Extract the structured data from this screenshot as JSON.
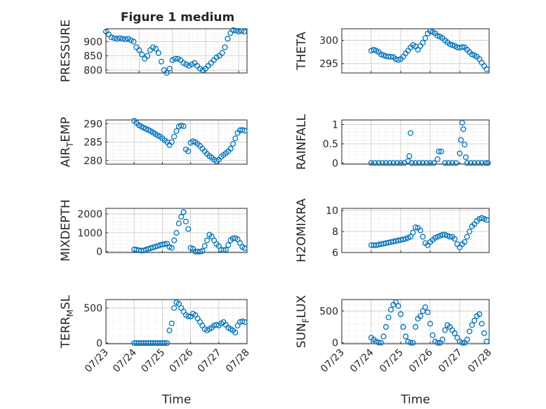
{
  "figure_title": "Figure 1 medium",
  "colors": {
    "marker": "#0072BD",
    "axis": "#262626",
    "grid": "#DCDCDC",
    "background": "#FFFFFF"
  },
  "chart_data": [
    {
      "type": "scatter",
      "ylabel": "PRESSURE",
      "title": "Figure 1 medium",
      "xlabel": "",
      "xlim": [
        "2009-07-24T00:00",
        "2009-07-28T06:00"
      ],
      "ylim": [
        790,
        945
      ],
      "yticks": [
        800,
        850,
        900
      ],
      "x": [
        "2009-07-24T00:00",
        "2009-07-24T02:00",
        "2009-07-24T04:00",
        "2009-07-24T06:00",
        "2009-07-24T08:00",
        "2009-07-24T10:00",
        "2009-07-24T12:00",
        "2009-07-24T14:00",
        "2009-07-24T16:00",
        "2009-07-24T18:00",
        "2009-07-24T20:00",
        "2009-07-24T22:00",
        "2009-07-25T00:00",
        "2009-07-25T02:00",
        "2009-07-25T04:00",
        "2009-07-25T06:00",
        "2009-07-25T08:00",
        "2009-07-25T10:00",
        "2009-07-25T12:00",
        "2009-07-25T14:00",
        "2009-07-25T16:00",
        "2009-07-25T18:00",
        "2009-07-25T20:00",
        "2009-07-25T22:00",
        "2009-07-26T00:00",
        "2009-07-26T02:00",
        "2009-07-26T04:00",
        "2009-07-26T06:00",
        "2009-07-26T08:00",
        "2009-07-26T10:00",
        "2009-07-26T12:00",
        "2009-07-26T14:00",
        "2009-07-26T16:00",
        "2009-07-26T18:00",
        "2009-07-26T20:00",
        "2009-07-26T22:00",
        "2009-07-27T00:00",
        "2009-07-27T02:00",
        "2009-07-27T04:00",
        "2009-07-27T06:00",
        "2009-07-27T08:00",
        "2009-07-27T10:00",
        "2009-07-27T12:00",
        "2009-07-27T14:00",
        "2009-07-27T16:00",
        "2009-07-27T18:00",
        "2009-07-27T20:00",
        "2009-07-27T22:00",
        "2009-07-28T00:00",
        "2009-07-28T02:00",
        "2009-07-28T04:00"
      ],
      "y": [
        935,
        925,
        915,
        912,
        910,
        912,
        910,
        908,
        910,
        905,
        900,
        880,
        870,
        855,
        840,
        850,
        870,
        880,
        875,
        860,
        830,
        800,
        790,
        805,
        835,
        840,
        840,
        835,
        825,
        820,
        815,
        820,
        825,
        815,
        805,
        800,
        805,
        815,
        825,
        835,
        845,
        850,
        860,
        880,
        910,
        930,
        940,
        938,
        935,
        937,
        935
      ]
    },
    {
      "type": "scatter",
      "ylabel": "THETA",
      "xlabel": "",
      "xlim": [
        "2009-07-23T00:00",
        "2009-07-28T00:00"
      ],
      "ylim": [
        293,
        302.5
      ],
      "yticks": [
        295,
        300
      ],
      "x": [
        "2009-07-24T00:00",
        "2009-07-24T02:00",
        "2009-07-24T04:00",
        "2009-07-24T06:00",
        "2009-07-24T08:00",
        "2009-07-24T10:00",
        "2009-07-24T12:00",
        "2009-07-24T14:00",
        "2009-07-24T16:00",
        "2009-07-24T18:00",
        "2009-07-24T20:00",
        "2009-07-24T22:00",
        "2009-07-25T00:00",
        "2009-07-25T02:00",
        "2009-07-25T04:00",
        "2009-07-25T06:00",
        "2009-07-25T08:00",
        "2009-07-25T10:00",
        "2009-07-25T12:00",
        "2009-07-25T14:00",
        "2009-07-25T16:00",
        "2009-07-25T18:00",
        "2009-07-25T20:00",
        "2009-07-25T22:00",
        "2009-07-26T00:00",
        "2009-07-26T02:00",
        "2009-07-26T04:00",
        "2009-07-26T06:00",
        "2009-07-26T08:00",
        "2009-07-26T10:00",
        "2009-07-26T12:00",
        "2009-07-26T14:00",
        "2009-07-26T16:00",
        "2009-07-26T18:00",
        "2009-07-26T20:00",
        "2009-07-26T22:00",
        "2009-07-27T00:00",
        "2009-07-27T02:00",
        "2009-07-27T04:00",
        "2009-07-27T06:00",
        "2009-07-27T08:00",
        "2009-07-27T10:00",
        "2009-07-27T12:00",
        "2009-07-27T14:00",
        "2009-07-27T16:00",
        "2009-07-27T18:00",
        "2009-07-27T20:00",
        "2009-07-27T22:00"
      ],
      "y": [
        297.8,
        298.0,
        297.8,
        297.5,
        297.0,
        296.8,
        296.6,
        296.5,
        296.5,
        296.4,
        296.0,
        295.8,
        296.0,
        296.5,
        297.2,
        297.8,
        298.5,
        299.0,
        298.7,
        298.0,
        298.8,
        299.5,
        300.5,
        301.5,
        302.0,
        301.8,
        301.5,
        301.0,
        300.8,
        300.5,
        300.0,
        299.6,
        299.2,
        299.0,
        298.8,
        298.5,
        298.4,
        298.6,
        298.5,
        298.0,
        297.5,
        297.0,
        296.8,
        296.5,
        296.0,
        295.2,
        294.5,
        293.8
      ]
    },
    {
      "type": "scatter",
      "ylabel": "AIR_TEMP",
      "ylabel_display": [
        "AIR",
        "T",
        "EMP"
      ],
      "xlabel": "",
      "xlim": [
        "2009-07-23T00:00",
        "2009-07-28T00:00"
      ],
      "ylim": [
        279,
        291
      ],
      "yticks": [
        280,
        285,
        290
      ],
      "x": [
        "2009-07-24T00:00",
        "2009-07-24T02:00",
        "2009-07-24T04:00",
        "2009-07-24T06:00",
        "2009-07-24T08:00",
        "2009-07-24T10:00",
        "2009-07-24T12:00",
        "2009-07-24T14:00",
        "2009-07-24T16:00",
        "2009-07-24T18:00",
        "2009-07-24T20:00",
        "2009-07-24T22:00",
        "2009-07-25T00:00",
        "2009-07-25T02:00",
        "2009-07-25T04:00",
        "2009-07-25T06:00",
        "2009-07-25T08:00",
        "2009-07-25T10:00",
        "2009-07-25T12:00",
        "2009-07-25T14:00",
        "2009-07-25T16:00",
        "2009-07-25T18:00",
        "2009-07-25T20:00",
        "2009-07-25T22:00",
        "2009-07-26T00:00",
        "2009-07-26T02:00",
        "2009-07-26T04:00",
        "2009-07-26T06:00",
        "2009-07-26T08:00",
        "2009-07-26T10:00",
        "2009-07-26T12:00",
        "2009-07-26T14:00",
        "2009-07-26T16:00",
        "2009-07-26T18:00",
        "2009-07-26T20:00",
        "2009-07-26T22:00",
        "2009-07-27T00:00",
        "2009-07-27T02:00",
        "2009-07-27T04:00",
        "2009-07-27T06:00",
        "2009-07-27T08:00",
        "2009-07-27T10:00",
        "2009-07-27T12:00",
        "2009-07-27T14:00",
        "2009-07-27T16:00",
        "2009-07-27T18:00",
        "2009-07-27T20:00",
        "2009-07-27T22:00"
      ],
      "y": [
        290.8,
        290.2,
        289.6,
        289.2,
        288.9,
        288.6,
        288.3,
        288.0,
        287.6,
        287.2,
        286.8,
        286.5,
        286.0,
        285.5,
        285.0,
        284.2,
        285.0,
        286.5,
        288.0,
        289.2,
        289.5,
        289.3,
        283.0,
        282.5,
        284.8,
        285.2,
        285.0,
        284.5,
        284.0,
        283.2,
        282.5,
        281.8,
        281.2,
        280.8,
        280.2,
        279.8,
        280.2,
        281.0,
        281.5,
        282.0,
        282.5,
        283.2,
        284.5,
        286.0,
        287.5,
        288.2,
        288.3,
        288.1
      ]
    },
    {
      "type": "scatter",
      "ylabel": "RAINFALL",
      "xlabel": "",
      "xlim": [
        "2009-07-23T00:00",
        "2009-07-28T00:00"
      ],
      "ylim": [
        -0.03,
        1.12
      ],
      "yticks": [
        0,
        0.5,
        1
      ],
      "x": [
        "2009-07-24T00:00",
        "2009-07-24T03:00",
        "2009-07-24T06:00",
        "2009-07-24T09:00",
        "2009-07-24T12:00",
        "2009-07-24T15:00",
        "2009-07-24T18:00",
        "2009-07-24T21:00",
        "2009-07-25T00:00",
        "2009-07-25T03:00",
        "2009-07-25T06:00",
        "2009-07-25T07:00",
        "2009-07-25T08:00",
        "2009-07-25T09:00",
        "2009-07-25T12:00",
        "2009-07-25T15:00",
        "2009-07-25T18:00",
        "2009-07-25T21:00",
        "2009-07-26T00:00",
        "2009-07-26T03:00",
        "2009-07-26T06:00",
        "2009-07-26T07:00",
        "2009-07-26T09:00",
        "2009-07-26T12:00",
        "2009-07-26T15:00",
        "2009-07-26T18:00",
        "2009-07-26T21:00",
        "2009-07-27T00:00",
        "2009-07-27T01:00",
        "2009-07-27T02:00",
        "2009-07-27T03:00",
        "2009-07-27T04:00",
        "2009-07-27T05:00",
        "2009-07-27T06:00",
        "2009-07-27T09:00",
        "2009-07-27T12:00",
        "2009-07-27T15:00",
        "2009-07-27T18:00",
        "2009-07-27T21:00",
        "2009-07-27T23:00"
      ],
      "y": [
        0,
        0,
        0,
        0,
        0,
        0,
        0,
        0,
        0,
        0,
        0.05,
        0.18,
        0.78,
        0,
        0,
        0,
        0,
        0,
        0,
        0,
        0.1,
        0.3,
        0.3,
        0,
        0,
        0,
        0,
        0.25,
        0.6,
        1.05,
        0.88,
        0.48,
        0.15,
        0,
        0,
        0,
        0,
        0,
        0,
        0
      ]
    },
    {
      "type": "scatter",
      "ylabel": "MIXDEPTH",
      "xlabel": "",
      "xlim": [
        "2009-07-23T00:00",
        "2009-07-28T00:00"
      ],
      "ylim": [
        -50,
        2300
      ],
      "yticks": [
        0,
        1000,
        2000
      ],
      "x": [
        "2009-07-24T00:00",
        "2009-07-24T02:00",
        "2009-07-24T04:00",
        "2009-07-24T06:00",
        "2009-07-24T08:00",
        "2009-07-24T10:00",
        "2009-07-24T12:00",
        "2009-07-24T14:00",
        "2009-07-24T16:00",
        "2009-07-24T18:00",
        "2009-07-24T20:00",
        "2009-07-24T22:00",
        "2009-07-25T00:00",
        "2009-07-25T02:00",
        "2009-07-25T04:00",
        "2009-07-25T06:00",
        "2009-07-25T08:00",
        "2009-07-25T10:00",
        "2009-07-25T12:00",
        "2009-07-25T14:00",
        "2009-07-25T16:00",
        "2009-07-25T18:00",
        "2009-07-25T20:00",
        "2009-07-25T22:00",
        "2009-07-26T00:00",
        "2009-07-26T02:00",
        "2009-07-26T04:00",
        "2009-07-26T06:00",
        "2009-07-26T08:00",
        "2009-07-26T10:00",
        "2009-07-26T12:00",
        "2009-07-26T14:00",
        "2009-07-26T16:00",
        "2009-07-26T18:00",
        "2009-07-26T20:00",
        "2009-07-26T22:00",
        "2009-07-27T00:00",
        "2009-07-27T02:00",
        "2009-07-27T04:00",
        "2009-07-27T06:00",
        "2009-07-27T08:00",
        "2009-07-27T10:00",
        "2009-07-27T12:00",
        "2009-07-27T14:00",
        "2009-07-27T16:00",
        "2009-07-27T18:00",
        "2009-07-27T20:00",
        "2009-07-27T22:00"
      ],
      "y": [
        120,
        100,
        70,
        50,
        60,
        100,
        150,
        180,
        220,
        260,
        300,
        350,
        380,
        400,
        420,
        250,
        200,
        600,
        1000,
        1500,
        1850,
        2100,
        1600,
        1200,
        200,
        150,
        0,
        0,
        0,
        30,
        300,
        600,
        900,
        800,
        600,
        400,
        300,
        100,
        80,
        100,
        350,
        600,
        700,
        720,
        650,
        450,
        250,
        180
      ]
    },
    {
      "type": "scatter",
      "ylabel": "H2OMIXRA",
      "xlabel": "",
      "xlim": [
        "2009-07-23T00:00",
        "2009-07-28T00:00"
      ],
      "ylim": [
        6,
        10.2
      ],
      "yticks": [
        6,
        8,
        10
      ],
      "x": [
        "2009-07-24T00:00",
        "2009-07-24T02:00",
        "2009-07-24T04:00",
        "2009-07-24T06:00",
        "2009-07-24T08:00",
        "2009-07-24T10:00",
        "2009-07-24T12:00",
        "2009-07-24T14:00",
        "2009-07-24T16:00",
        "2009-07-24T18:00",
        "2009-07-24T20:00",
        "2009-07-24T22:00",
        "2009-07-25T00:00",
        "2009-07-25T02:00",
        "2009-07-25T04:00",
        "2009-07-25T06:00",
        "2009-07-25T08:00",
        "2009-07-25T10:00",
        "2009-07-25T12:00",
        "2009-07-25T14:00",
        "2009-07-25T16:00",
        "2009-07-25T18:00",
        "2009-07-25T20:00",
        "2009-07-25T22:00",
        "2009-07-26T00:00",
        "2009-07-26T02:00",
        "2009-07-26T04:00",
        "2009-07-26T06:00",
        "2009-07-26T08:00",
        "2009-07-26T10:00",
        "2009-07-26T12:00",
        "2009-07-26T14:00",
        "2009-07-26T16:00",
        "2009-07-26T18:00",
        "2009-07-26T20:00",
        "2009-07-26T22:00",
        "2009-07-27T00:00",
        "2009-07-27T02:00",
        "2009-07-27T04:00",
        "2009-07-27T06:00",
        "2009-07-27T08:00",
        "2009-07-27T10:00",
        "2009-07-27T12:00",
        "2009-07-27T14:00",
        "2009-07-27T16:00",
        "2009-07-27T18:00",
        "2009-07-27T20:00",
        "2009-07-27T22:00"
      ],
      "y": [
        6.7,
        6.7,
        6.7,
        6.75,
        6.8,
        6.85,
        6.9,
        6.95,
        7.0,
        7.05,
        7.1,
        7.15,
        7.2,
        7.25,
        7.3,
        7.4,
        7.5,
        7.9,
        8.4,
        8.35,
        8.1,
        7.5,
        6.9,
        6.7,
        7.0,
        7.2,
        7.4,
        7.5,
        7.6,
        7.7,
        7.7,
        7.6,
        7.5,
        7.5,
        7.3,
        6.8,
        6.5,
        6.8,
        7.0,
        7.5,
        8.0,
        8.5,
        8.7,
        9.0,
        9.2,
        9.3,
        9.2,
        9.1
      ]
    },
    {
      "type": "scatter",
      "ylabel": "TERR_MSL",
      "ylabel_display": [
        "TERR",
        "M",
        "SL"
      ],
      "xlabel": "Time",
      "xlim": [
        "2009-07-23T00:00",
        "2009-07-28T00:00"
      ],
      "ylim": [
        -10,
        620
      ],
      "yticks": [
        0,
        500
      ],
      "xticklabels": [
        "07/23",
        "07/24",
        "07/25",
        "07/26",
        "07/27",
        "07/28"
      ],
      "x": [
        "2009-07-24T00:00",
        "2009-07-24T02:00",
        "2009-07-24T04:00",
        "2009-07-24T06:00",
        "2009-07-24T08:00",
        "2009-07-24T10:00",
        "2009-07-24T12:00",
        "2009-07-24T14:00",
        "2009-07-24T16:00",
        "2009-07-24T18:00",
        "2009-07-24T20:00",
        "2009-07-24T22:00",
        "2009-07-25T00:00",
        "2009-07-25T02:00",
        "2009-07-25T04:00",
        "2009-07-25T06:00",
        "2009-07-25T08:00",
        "2009-07-25T10:00",
        "2009-07-25T12:00",
        "2009-07-25T14:00",
        "2009-07-25T16:00",
        "2009-07-25T18:00",
        "2009-07-25T20:00",
        "2009-07-25T22:00",
        "2009-07-26T00:00",
        "2009-07-26T02:00",
        "2009-07-26T04:00",
        "2009-07-26T06:00",
        "2009-07-26T08:00",
        "2009-07-26T10:00",
        "2009-07-26T12:00",
        "2009-07-26T14:00",
        "2009-07-26T16:00",
        "2009-07-26T18:00",
        "2009-07-26T20:00",
        "2009-07-26T22:00",
        "2009-07-27T00:00",
        "2009-07-27T02:00",
        "2009-07-27T04:00",
        "2009-07-27T06:00",
        "2009-07-27T08:00",
        "2009-07-27T10:00",
        "2009-07-27T12:00",
        "2009-07-27T14:00",
        "2009-07-27T16:00",
        "2009-07-27T18:00",
        "2009-07-27T20:00",
        "2009-07-27T22:00"
      ],
      "y": [
        0,
        0,
        0,
        0,
        0,
        0,
        0,
        0,
        0,
        0,
        0,
        0,
        0,
        0,
        0,
        180,
        280,
        500,
        580,
        560,
        500,
        450,
        400,
        380,
        380,
        420,
        400,
        350,
        300,
        250,
        200,
        180,
        200,
        220,
        250,
        260,
        250,
        280,
        300,
        260,
        220,
        200,
        180,
        150,
        250,
        300,
        310,
        300
      ]
    },
    {
      "type": "scatter",
      "ylabel": "SUN_FLUX",
      "ylabel_display": [
        "SUN",
        "F",
        "LUX"
      ],
      "xlabel": "Time",
      "xlim": [
        "2009-07-23T00:00",
        "2009-07-28T00:00"
      ],
      "ylim": [
        -15,
        680
      ],
      "yticks": [
        0,
        500
      ],
      "xticklabels": [
        "07/23",
        "07/24",
        "07/25",
        "07/26",
        "07/27",
        "07/28"
      ],
      "x": [
        "2009-07-24T00:00",
        "2009-07-24T02:00",
        "2009-07-24T04:00",
        "2009-07-24T06:00",
        "2009-07-24T08:00",
        "2009-07-24T10:00",
        "2009-07-24T12:00",
        "2009-07-24T14:00",
        "2009-07-24T16:00",
        "2009-07-24T18:00",
        "2009-07-24T20:00",
        "2009-07-24T22:00",
        "2009-07-25T00:00",
        "2009-07-25T02:00",
        "2009-07-25T04:00",
        "2009-07-25T06:00",
        "2009-07-25T08:00",
        "2009-07-25T10:00",
        "2009-07-25T12:00",
        "2009-07-25T14:00",
        "2009-07-25T16:00",
        "2009-07-25T18:00",
        "2009-07-25T20:00",
        "2009-07-25T22:00",
        "2009-07-26T00:00",
        "2009-07-26T02:00",
        "2009-07-26T04:00",
        "2009-07-26T06:00",
        "2009-07-26T08:00",
        "2009-07-26T10:00",
        "2009-07-26T12:00",
        "2009-07-26T14:00",
        "2009-07-26T16:00",
        "2009-07-26T18:00",
        "2009-07-26T20:00",
        "2009-07-26T22:00",
        "2009-07-27T00:00",
        "2009-07-27T02:00",
        "2009-07-27T04:00",
        "2009-07-27T06:00",
        "2009-07-27T08:00",
        "2009-07-27T10:00",
        "2009-07-27T12:00",
        "2009-07-27T14:00",
        "2009-07-27T16:00",
        "2009-07-27T18:00",
        "2009-07-27T20:00",
        "2009-07-27T22:00"
      ],
      "y": [
        80,
        50,
        20,
        5,
        0,
        100,
        250,
        400,
        520,
        600,
        640,
        580,
        450,
        250,
        100,
        20,
        0,
        0,
        250,
        380,
        420,
        500,
        560,
        480,
        300,
        120,
        20,
        0,
        0,
        50,
        200,
        280,
        250,
        200,
        150,
        80,
        20,
        0,
        0,
        50,
        180,
        280,
        350,
        420,
        450,
        300,
        150,
        20
      ]
    }
  ]
}
